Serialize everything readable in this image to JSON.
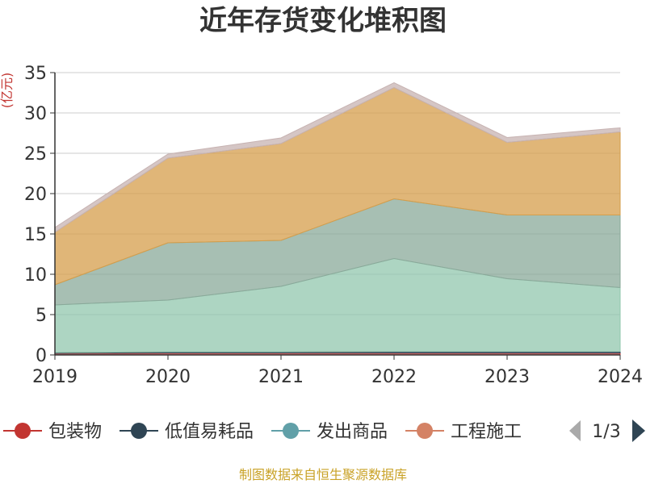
{
  "chart_data": {
    "type": "area",
    "stacked": true,
    "title": "近年存货变化堆积图",
    "unit_label": "(亿元)",
    "categories": [
      "2019",
      "2020",
      "2021",
      "2022",
      "2023",
      "2024"
    ],
    "ylim": [
      0,
      35
    ],
    "yticks": [
      "0",
      "5",
      "10",
      "15",
      "20",
      "25",
      "30",
      "35"
    ],
    "grid": true,
    "series": [
      {
        "name": "包装物",
        "color": "#c23531",
        "values": [
          0.2,
          0.25,
          0.25,
          0.25,
          0.25,
          0.25
        ]
      },
      {
        "name": "低值易耗品",
        "color": "#2f4554",
        "values": [
          0.1,
          0.15,
          0.15,
          0.2,
          0.2,
          0.2
        ]
      },
      {
        "name": "发出商品",
        "color": "#61a0a8",
        "values": [
          0,
          0,
          0,
          0,
          0,
          0
        ]
      },
      {
        "name": "工程施工",
        "color": "#d48265",
        "values": [
          0,
          0,
          0,
          0,
          0,
          0
        ]
      },
      {
        "name": "",
        "color": "#91c7ae",
        "values": [
          5.9,
          6.4,
          8.1,
          11.5,
          9.0,
          7.9
        ]
      },
      {
        "name": "",
        "color": "#8aa99a",
        "values": [
          2.5,
          7.1,
          5.7,
          7.4,
          7.9,
          9.0
        ]
      },
      {
        "name": "",
        "color": "#d59e4b",
        "values": [
          6.5,
          10.5,
          12.0,
          13.8,
          9.0,
          10.3
        ]
      },
      {
        "name": "",
        "color": "#c7b3b2",
        "values": [
          0.6,
          0.5,
          0.7,
          0.6,
          0.6,
          0.5
        ]
      }
    ],
    "legend": {
      "placement": "bottom",
      "items": [
        "包装物",
        "低值易耗品",
        "发出商品",
        "工程施工"
      ],
      "page": "1/3"
    }
  },
  "source_note": "制图数据来自恒生聚源数据库"
}
